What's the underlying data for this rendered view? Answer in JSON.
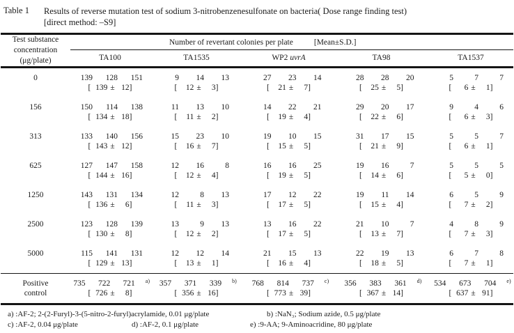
{
  "title": {
    "label": "Table 1",
    "line1": "Results of reverse mutation test of sodium 3-nitrobenzenesulfonate on bacteria( Dose range finding test)",
    "line2": "[direct method: –S9]"
  },
  "table": {
    "corner_header": [
      "Test substance",
      "concentration",
      "(μg/plate)"
    ],
    "span_header": "Number of revertant colonies per plate",
    "span_header_right": "[Mean±S.D.]",
    "mean_format": {
      "open": "[",
      "pm": "±",
      "close": "]"
    },
    "strains": [
      {
        "label": "TA100",
        "italic": ""
      },
      {
        "label": "TA1535",
        "italic": ""
      },
      {
        "label": "WP2",
        "italic": "uvrA"
      },
      {
        "label": "TA98",
        "italic": ""
      },
      {
        "label": "TA1537",
        "italic": ""
      }
    ],
    "rows": [
      {
        "dose": "0",
        "cells": [
          {
            "counts": [
              "139",
              "128",
              "151"
            ],
            "mean": "139",
            "sd": "12"
          },
          {
            "counts": [
              "9",
              "14",
              "13"
            ],
            "mean": "12",
            "sd": "3"
          },
          {
            "counts": [
              "27",
              "23",
              "14"
            ],
            "mean": "21",
            "sd": "7"
          },
          {
            "counts": [
              "28",
              "28",
              "20"
            ],
            "mean": "25",
            "sd": "5"
          },
          {
            "counts": [
              "5",
              "7",
              "7"
            ],
            "mean": "6",
            "sd": "1"
          }
        ]
      },
      {
        "dose": "156",
        "cells": [
          {
            "counts": [
              "150",
              "114",
              "138"
            ],
            "mean": "134",
            "sd": "18"
          },
          {
            "counts": [
              "11",
              "13",
              "10"
            ],
            "mean": "11",
            "sd": "2"
          },
          {
            "counts": [
              "14",
              "22",
              "21"
            ],
            "mean": "19",
            "sd": "4"
          },
          {
            "counts": [
              "29",
              "20",
              "17"
            ],
            "mean": "22",
            "sd": "6"
          },
          {
            "counts": [
              "9",
              "4",
              "6"
            ],
            "mean": "6",
            "sd": "3"
          }
        ]
      },
      {
        "dose": "313",
        "cells": [
          {
            "counts": [
              "133",
              "140",
              "156"
            ],
            "mean": "143",
            "sd": "12"
          },
          {
            "counts": [
              "15",
              "23",
              "10"
            ],
            "mean": "16",
            "sd": "7"
          },
          {
            "counts": [
              "19",
              "10",
              "15"
            ],
            "mean": "15",
            "sd": "5"
          },
          {
            "counts": [
              "31",
              "17",
              "15"
            ],
            "mean": "21",
            "sd": "9"
          },
          {
            "counts": [
              "5",
              "5",
              "7"
            ],
            "mean": "6",
            "sd": "1"
          }
        ]
      },
      {
        "dose": "625",
        "cells": [
          {
            "counts": [
              "127",
              "147",
              "158"
            ],
            "mean": "144",
            "sd": "16"
          },
          {
            "counts": [
              "12",
              "16",
              "8"
            ],
            "mean": "12",
            "sd": "4"
          },
          {
            "counts": [
              "16",
              "16",
              "25"
            ],
            "mean": "19",
            "sd": "5"
          },
          {
            "counts": [
              "19",
              "16",
              "7"
            ],
            "mean": "14",
            "sd": "6"
          },
          {
            "counts": [
              "5",
              "5",
              "5"
            ],
            "mean": "5",
            "sd": "0"
          }
        ]
      },
      {
        "dose": "1250",
        "cells": [
          {
            "counts": [
              "143",
              "131",
              "134"
            ],
            "mean": "136",
            "sd": "6"
          },
          {
            "counts": [
              "12",
              "8",
              "13"
            ],
            "mean": "11",
            "sd": "3"
          },
          {
            "counts": [
              "17",
              "12",
              "22"
            ],
            "mean": "17",
            "sd": "5"
          },
          {
            "counts": [
              "19",
              "11",
              "14"
            ],
            "mean": "15",
            "sd": "4"
          },
          {
            "counts": [
              "6",
              "5",
              "9"
            ],
            "mean": "7",
            "sd": "2"
          }
        ]
      },
      {
        "dose": "2500",
        "cells": [
          {
            "counts": [
              "123",
              "128",
              "139"
            ],
            "mean": "130",
            "sd": "8"
          },
          {
            "counts": [
              "13",
              "9",
              "13"
            ],
            "mean": "12",
            "sd": "2"
          },
          {
            "counts": [
              "13",
              "16",
              "22"
            ],
            "mean": "17",
            "sd": "5"
          },
          {
            "counts": [
              "21",
              "10",
              "7"
            ],
            "mean": "13",
            "sd": "7"
          },
          {
            "counts": [
              "4",
              "8",
              "9"
            ],
            "mean": "7",
            "sd": "3"
          }
        ]
      },
      {
        "dose": "5000",
        "cells": [
          {
            "counts": [
              "115",
              "141",
              "131"
            ],
            "mean": "129",
            "sd": "13"
          },
          {
            "counts": [
              "12",
              "12",
              "14"
            ],
            "mean": "13",
            "sd": "1"
          },
          {
            "counts": [
              "21",
              "15",
              "13"
            ],
            "mean": "16",
            "sd": "4"
          },
          {
            "counts": [
              "22",
              "19",
              "13"
            ],
            "mean": "18",
            "sd": "5"
          },
          {
            "counts": [
              "6",
              "7",
              "8"
            ],
            "mean": "7",
            "sd": "1"
          }
        ]
      }
    ],
    "positive_row": {
      "dose_line1": "Positive",
      "dose_line2": "control",
      "cells": [
        {
          "counts": [
            "735",
            "722",
            "721"
          ],
          "sup": "a)",
          "mean": "726",
          "sd": "8"
        },
        {
          "counts": [
            "357",
            "371",
            "339"
          ],
          "sup": "b)",
          "mean": "356",
          "sd": "16"
        },
        {
          "counts": [
            "768",
            "814",
            "737"
          ],
          "sup": "c)",
          "mean": "773",
          "sd": "39"
        },
        {
          "counts": [
            "356",
            "383",
            "361"
          ],
          "sup": "d)",
          "mean": "367",
          "sd": "14"
        },
        {
          "counts": [
            "534",
            "673",
            "704"
          ],
          "sup": "e)",
          "mean": "637",
          "sd": "91"
        }
      ]
    }
  },
  "footnotes": {
    "line1": [
      "a) :AF-2; 2-(2-Furyl)-3-(5-nitro-2-furyl)acrylamide, 0.01 μg/plate",
      "b) :NaN₃; Sodium azide, 0.5 μg/plate"
    ],
    "line2": [
      "c) :AF-2, 0.04 μg/plate",
      "d) :AF-2, 0.1 μg/plate",
      "e) :9-AA; 9-Aminoacridine, 80 μg/plate"
    ]
  }
}
